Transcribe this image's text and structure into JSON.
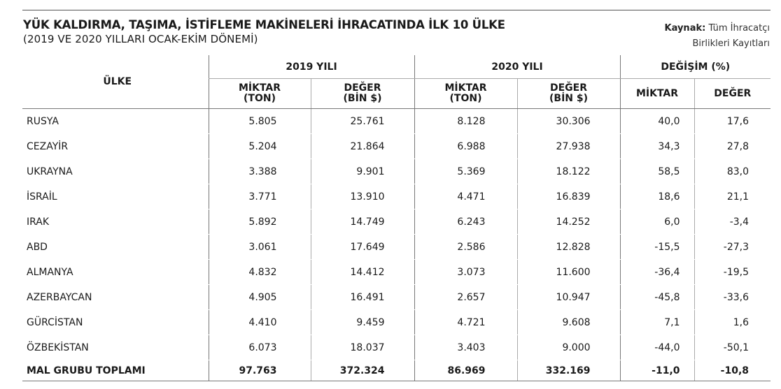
{
  "title": "YÜK KALDIRMA, TAŞIMA, İSTİFLEME MAKİNELERİ İHRACATINDA İLK 10 ÜLKE",
  "subtitle": "(2019 VE 2020 YILLARI OCAK-EKİM DÖNEMİ)",
  "source": {
    "label": "Kaynak:",
    "line1": "Tüm İhracatçı",
    "line2": "Birlikleri Kayıtları"
  },
  "headers": {
    "country": "ÜLKE",
    "year2019": "2019 YILI",
    "year2020": "2020 YILI",
    "change": "DEĞİŞİM (%)",
    "qty_l1": "MİKTAR",
    "qty_l2": "(TON)",
    "val_l1": "DEĞER",
    "val_l2": "(BİN $)",
    "chg_qty": "MİKTAR",
    "chg_val": "DEĞER"
  },
  "rows": [
    {
      "country": "RUSYA",
      "q2019": "5.805",
      "v2019": "25.761",
      "q2020": "8.128",
      "v2020": "30.306",
      "cq": "40,0",
      "cv": "17,6"
    },
    {
      "country": "CEZAYİR",
      "q2019": "5.204",
      "v2019": "21.864",
      "q2020": "6.988",
      "v2020": "27.938",
      "cq": "34,3",
      "cv": "27,8"
    },
    {
      "country": "UKRAYNA",
      "q2019": "3.388",
      "v2019": "9.901",
      "q2020": "5.369",
      "v2020": "18.122",
      "cq": "58,5",
      "cv": "83,0"
    },
    {
      "country": "İSRAİL",
      "q2019": "3.771",
      "v2019": "13.910",
      "q2020": "4.471",
      "v2020": "16.839",
      "cq": "18,6",
      "cv": "21,1"
    },
    {
      "country": "IRAK",
      "q2019": "5.892",
      "v2019": "14.749",
      "q2020": "6.243",
      "v2020": "14.252",
      "cq": "6,0",
      "cv": "-3,4"
    },
    {
      "country": "ABD",
      "q2019": "3.061",
      "v2019": "17.649",
      "q2020": "2.586",
      "v2020": "12.828",
      "cq": "-15,5",
      "cv": "-27,3"
    },
    {
      "country": "ALMANYA",
      "q2019": "4.832",
      "v2019": "14.412",
      "q2020": "3.073",
      "v2020": "11.600",
      "cq": "-36,4",
      "cv": "-19,5"
    },
    {
      "country": "AZERBAYCAN",
      "q2019": "4.905",
      "v2019": "16.491",
      "q2020": "2.657",
      "v2020": "10.947",
      "cq": "-45,8",
      "cv": "-33,6"
    },
    {
      "country": "GÜRCİSTAN",
      "q2019": "4.410",
      "v2019": "9.459",
      "q2020": "4.721",
      "v2020": "9.608",
      "cq": "7,1",
      "cv": "1,6"
    },
    {
      "country": "ÖZBEKİSTAN",
      "q2019": "6.073",
      "v2019": "18.037",
      "q2020": "3.403",
      "v2020": "9.000",
      "cq": "-44,0",
      "cv": "-50,1"
    }
  ],
  "total": {
    "country": "MAL GRUBU TOPLAMI",
    "q2019": "97.763",
    "v2019": "372.324",
    "q2020": "86.969",
    "v2020": "332.169",
    "cq": "-11,0",
    "cv": "-10,8"
  }
}
